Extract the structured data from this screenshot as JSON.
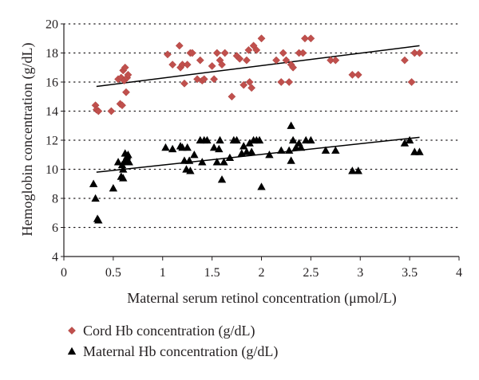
{
  "chart_data": {
    "type": "scatter",
    "xlabel": "Maternal serum retinol concentration (μmol/L)",
    "ylabel": "Hemoglobin concentration (g/dL)",
    "xlim": [
      0,
      4
    ],
    "ylim": [
      4,
      20
    ],
    "x_ticks": [
      "0",
      "0.5",
      "1",
      "1.5",
      "2",
      "2.5",
      "3",
      "3.5",
      "4"
    ],
    "y_ticks": [
      "4",
      "6",
      "8",
      "10",
      "12",
      "14",
      "16",
      "18",
      "20"
    ],
    "grid": "horizontal dotted",
    "legend_position": "bottom",
    "series": [
      {
        "name": "Cord Hb concentration (g/dL)",
        "marker": "diamond",
        "color": "#c0504d",
        "points": [
          [
            0.32,
            14.4
          ],
          [
            0.33,
            14.1
          ],
          [
            0.35,
            14.0
          ],
          [
            0.48,
            14.0
          ],
          [
            0.55,
            16.2
          ],
          [
            0.57,
            14.5
          ],
          [
            0.58,
            16.3
          ],
          [
            0.59,
            14.4
          ],
          [
            0.6,
            16.8
          ],
          [
            0.61,
            16.1
          ],
          [
            0.62,
            17.0
          ],
          [
            0.63,
            15.3
          ],
          [
            0.64,
            16.3
          ],
          [
            0.65,
            16.5
          ],
          [
            1.05,
            17.9
          ],
          [
            1.1,
            17.2
          ],
          [
            1.17,
            18.5
          ],
          [
            1.18,
            17.0
          ],
          [
            1.2,
            17.2
          ],
          [
            1.22,
            15.9
          ],
          [
            1.25,
            17.2
          ],
          [
            1.28,
            18.0
          ],
          [
            1.3,
            18.0
          ],
          [
            1.35,
            16.2
          ],
          [
            1.38,
            17.5
          ],
          [
            1.4,
            16.1
          ],
          [
            1.42,
            16.2
          ],
          [
            1.5,
            17.1
          ],
          [
            1.52,
            16.2
          ],
          [
            1.55,
            18.0
          ],
          [
            1.58,
            17.5
          ],
          [
            1.6,
            17.2
          ],
          [
            1.63,
            18.0
          ],
          [
            1.7,
            15.0
          ],
          [
            1.75,
            17.8
          ],
          [
            1.78,
            17.6
          ],
          [
            1.82,
            15.8
          ],
          [
            1.85,
            17.5
          ],
          [
            1.87,
            18.2
          ],
          [
            1.88,
            16.0
          ],
          [
            1.9,
            15.6
          ],
          [
            1.92,
            18.5
          ],
          [
            1.95,
            18.2
          ],
          [
            2.0,
            19.0
          ],
          [
            2.15,
            17.5
          ],
          [
            2.2,
            16.0
          ],
          [
            2.22,
            18.0
          ],
          [
            2.25,
            17.5
          ],
          [
            2.28,
            16.0
          ],
          [
            2.3,
            17.2
          ],
          [
            2.32,
            17.0
          ],
          [
            2.38,
            18.0
          ],
          [
            2.42,
            18.0
          ],
          [
            2.44,
            19.0
          ],
          [
            2.5,
            19.0
          ],
          [
            2.7,
            17.5
          ],
          [
            2.75,
            17.5
          ],
          [
            2.92,
            16.5
          ],
          [
            2.98,
            16.5
          ],
          [
            3.45,
            17.5
          ],
          [
            3.52,
            16.0
          ],
          [
            3.55,
            18.0
          ],
          [
            3.6,
            18.0
          ]
        ],
        "trendline": [
          [
            0.33,
            15.7
          ],
          [
            3.6,
            18.5
          ]
        ]
      },
      {
        "name": "Maternal Hb concentration (g/dL)",
        "marker": "triangle",
        "color": "#000000",
        "points": [
          [
            0.3,
            9.0
          ],
          [
            0.32,
            8.0
          ],
          [
            0.34,
            6.6
          ],
          [
            0.35,
            6.5
          ],
          [
            0.5,
            8.7
          ],
          [
            0.55,
            10.5
          ],
          [
            0.58,
            9.5
          ],
          [
            0.59,
            10.3
          ],
          [
            0.6,
            10.0
          ],
          [
            0.6,
            9.4
          ],
          [
            0.61,
            10.5
          ],
          [
            0.62,
            11.1
          ],
          [
            0.63,
            10.7
          ],
          [
            0.64,
            10.9
          ],
          [
            0.65,
            11.0
          ],
          [
            0.66,
            10.5
          ],
          [
            1.03,
            11.5
          ],
          [
            1.1,
            11.4
          ],
          [
            1.18,
            11.6
          ],
          [
            1.2,
            11.5
          ],
          [
            1.22,
            10.6
          ],
          [
            1.24,
            10.0
          ],
          [
            1.25,
            11.5
          ],
          [
            1.27,
            10.6
          ],
          [
            1.28,
            9.9
          ],
          [
            1.32,
            11.0
          ],
          [
            1.38,
            12.0
          ],
          [
            1.4,
            10.5
          ],
          [
            1.42,
            12.0
          ],
          [
            1.45,
            12.0
          ],
          [
            1.52,
            11.5
          ],
          [
            1.55,
            10.5
          ],
          [
            1.57,
            11.4
          ],
          [
            1.58,
            12.0
          ],
          [
            1.6,
            9.3
          ],
          [
            1.62,
            10.5
          ],
          [
            1.68,
            10.8
          ],
          [
            1.72,
            12.0
          ],
          [
            1.75,
            12.0
          ],
          [
            1.8,
            11.1
          ],
          [
            1.82,
            11.6
          ],
          [
            1.85,
            11.2
          ],
          [
            1.88,
            11.8
          ],
          [
            1.9,
            11.2
          ],
          [
            1.92,
            12.0
          ],
          [
            1.95,
            12.0
          ],
          [
            1.98,
            12.0
          ],
          [
            2.0,
            8.8
          ],
          [
            2.08,
            11.0
          ],
          [
            2.2,
            11.3
          ],
          [
            2.28,
            11.3
          ],
          [
            2.3,
            10.6
          ],
          [
            2.3,
            13.0
          ],
          [
            2.32,
            12.0
          ],
          [
            2.35,
            11.5
          ],
          [
            2.38,
            11.8
          ],
          [
            2.4,
            11.5
          ],
          [
            2.45,
            12.0
          ],
          [
            2.5,
            12.0
          ],
          [
            2.65,
            11.3
          ],
          [
            2.75,
            11.3
          ],
          [
            2.92,
            9.9
          ],
          [
            2.98,
            9.9
          ],
          [
            3.45,
            11.8
          ],
          [
            3.5,
            12.0
          ],
          [
            3.55,
            11.2
          ],
          [
            3.6,
            11.2
          ]
        ],
        "trendline": [
          [
            0.33,
            9.8
          ],
          [
            3.6,
            12.2
          ]
        ]
      }
    ]
  }
}
